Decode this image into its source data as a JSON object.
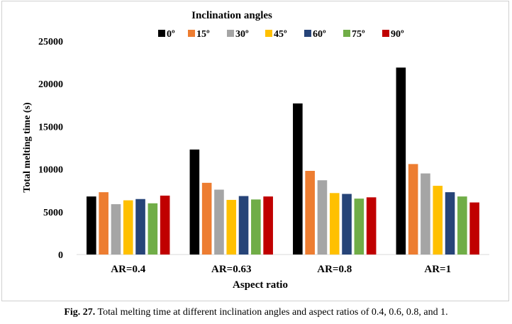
{
  "chart_data": {
    "type": "bar",
    "legend_title": "Inclination angles",
    "legend_position": "top",
    "xlabel": "Aspect ratio",
    "ylabel": "Total melting time (s)",
    "ylim": [
      0,
      25000
    ],
    "yticks": [
      "0",
      "5000",
      "10000",
      "15000",
      "20000",
      "25000"
    ],
    "ytick_values": [
      0,
      5000,
      10000,
      15000,
      20000,
      25000
    ],
    "grid": false,
    "categories": [
      "AR=0.4",
      "AR=0.63",
      "AR=0.8",
      "AR=1"
    ],
    "series": [
      {
        "name": "0º",
        "color": "#000000",
        "values": [
          6800,
          12300,
          17700,
          21900
        ]
      },
      {
        "name": "15º",
        "color": "#ED7D31",
        "values": [
          7300,
          8400,
          9800,
          10600
        ]
      },
      {
        "name": "30º",
        "color": "#A5A5A5",
        "values": [
          5900,
          7600,
          8700,
          9500
        ]
      },
      {
        "name": "45º",
        "color": "#FFC000",
        "values": [
          6350,
          6400,
          7200,
          8050
        ]
      },
      {
        "name": "60º",
        "color": "#264478",
        "values": [
          6500,
          6850,
          7100,
          7300
        ]
      },
      {
        "name": "75º",
        "color": "#70AD47",
        "values": [
          6000,
          6450,
          6550,
          6800
        ]
      },
      {
        "name": "90º",
        "color": "#C00000",
        "values": [
          6900,
          6800,
          6700,
          6100
        ]
      }
    ]
  },
  "caption": {
    "label": "Fig. 27.",
    "text": " Total melting time at different inclination angles and aspect ratios of 0.4, 0.6, 0.8, and 1."
  }
}
